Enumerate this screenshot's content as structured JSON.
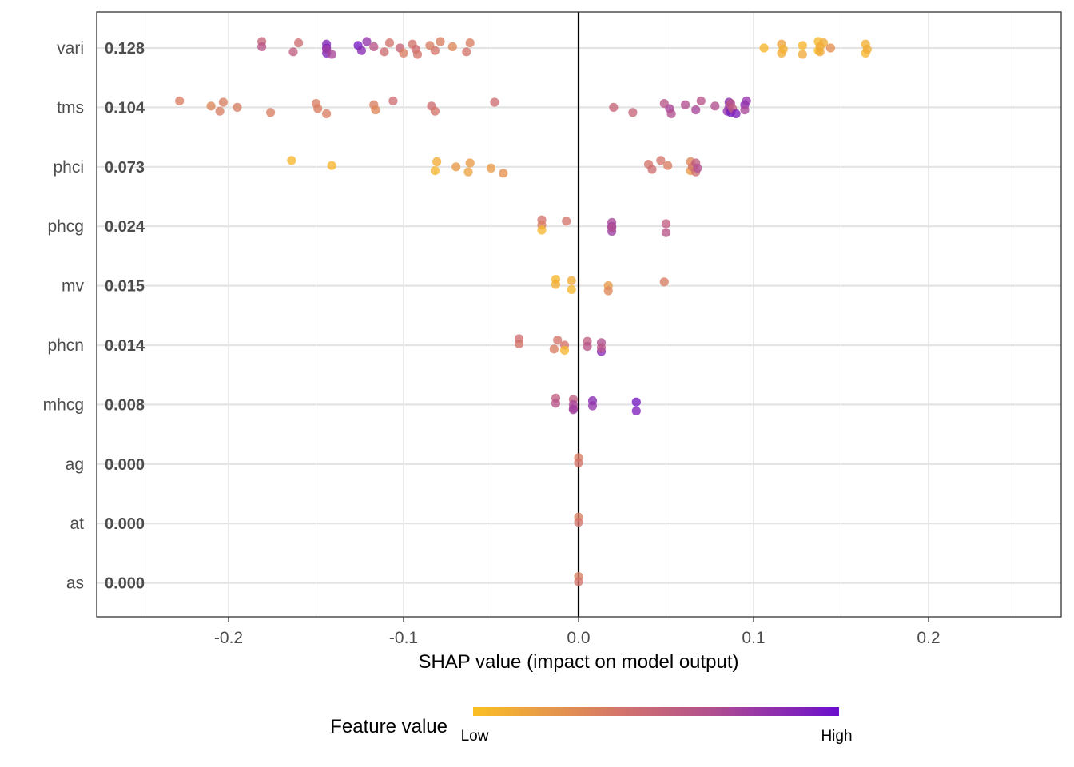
{
  "chart_data": {
    "type": "scatter",
    "title": "",
    "xlabel": "SHAP value (impact on model output)",
    "ylabel": "",
    "xlim": [
      -0.27,
      0.27
    ],
    "x_ticks": [
      -0.2,
      -0.1,
      0.0,
      0.1,
      0.2
    ],
    "x_tick_labels": [
      "-0.2",
      "-0.1",
      "0.0",
      "0.1",
      "0.2"
    ],
    "grid": true,
    "zero_line": true,
    "legend": {
      "title": "Feature value",
      "low_label": "Low",
      "high_label": "High",
      "placement": "bottom",
      "colors": [
        "#fbbf24",
        "#d4746a",
        "#b24f8f",
        "#6a0fcd"
      ]
    },
    "features": [
      {
        "name": "vari",
        "mean_abs": "0.128",
        "points": [
          [
            -0.181,
            0.5
          ],
          [
            -0.181,
            0.6
          ],
          [
            -0.163,
            0.55
          ],
          [
            -0.16,
            0.45
          ],
          [
            -0.144,
            0.92
          ],
          [
            -0.144,
            0.9
          ],
          [
            -0.144,
            0.88
          ],
          [
            -0.144,
            0.75
          ],
          [
            -0.141,
            0.7
          ],
          [
            -0.126,
            0.95
          ],
          [
            -0.124,
            0.85
          ],
          [
            -0.121,
            0.8
          ],
          [
            -0.117,
            0.6
          ],
          [
            -0.111,
            0.45
          ],
          [
            -0.108,
            0.4
          ],
          [
            -0.102,
            0.5
          ],
          [
            -0.1,
            0.35
          ],
          [
            -0.095,
            0.4
          ],
          [
            -0.093,
            0.45
          ],
          [
            -0.092,
            0.4
          ],
          [
            -0.085,
            0.35
          ],
          [
            -0.082,
            0.4
          ],
          [
            -0.079,
            0.35
          ],
          [
            -0.072,
            0.3
          ],
          [
            -0.064,
            0.4
          ],
          [
            -0.062,
            0.35
          ],
          [
            0.106,
            0.05
          ],
          [
            0.116,
            0.1
          ],
          [
            0.116,
            0.15
          ],
          [
            0.117,
            0.08
          ],
          [
            0.128,
            0.12
          ],
          [
            0.128,
            0.05
          ],
          [
            0.137,
            0.0
          ],
          [
            0.137,
            0.05
          ],
          [
            0.138,
            0.1
          ],
          [
            0.138,
            0.12
          ],
          [
            0.14,
            0.1
          ],
          [
            0.144,
            0.25
          ],
          [
            0.164,
            0.05
          ],
          [
            0.164,
            0.08
          ],
          [
            0.165,
            0.1
          ]
        ]
      },
      {
        "name": "tms",
        "mean_abs": "0.104",
        "points": [
          [
            -0.228,
            0.35
          ],
          [
            -0.21,
            0.3
          ],
          [
            -0.205,
            0.35
          ],
          [
            -0.203,
            0.35
          ],
          [
            -0.195,
            0.35
          ],
          [
            -0.176,
            0.35
          ],
          [
            -0.15,
            0.35
          ],
          [
            -0.149,
            0.35
          ],
          [
            -0.144,
            0.35
          ],
          [
            -0.117,
            0.35
          ],
          [
            -0.116,
            0.3
          ],
          [
            -0.106,
            0.45
          ],
          [
            -0.084,
            0.45
          ],
          [
            -0.082,
            0.4
          ],
          [
            -0.048,
            0.45
          ],
          [
            0.02,
            0.5
          ],
          [
            0.031,
            0.5
          ],
          [
            0.049,
            0.6
          ],
          [
            0.052,
            0.7
          ],
          [
            0.053,
            0.65
          ],
          [
            0.061,
            0.65
          ],
          [
            0.067,
            0.7
          ],
          [
            0.07,
            0.6
          ],
          [
            0.078,
            0.65
          ],
          [
            0.085,
            0.8
          ],
          [
            0.086,
            0.85
          ],
          [
            0.086,
            0.75
          ],
          [
            0.087,
            0.95
          ],
          [
            0.087,
            0.6
          ],
          [
            0.088,
            0.55
          ],
          [
            0.09,
            0.9
          ],
          [
            0.095,
            0.85
          ],
          [
            0.095,
            0.7
          ],
          [
            0.096,
            0.8
          ]
        ]
      },
      {
        "name": "phci",
        "mean_abs": "0.073",
        "points": [
          [
            -0.164,
            0.05
          ],
          [
            -0.141,
            0.05
          ],
          [
            -0.082,
            0.05
          ],
          [
            -0.081,
            0.1
          ],
          [
            -0.07,
            0.2
          ],
          [
            -0.063,
            0.15
          ],
          [
            -0.062,
            0.2
          ],
          [
            -0.05,
            0.2
          ],
          [
            -0.043,
            0.25
          ],
          [
            0.04,
            0.4
          ],
          [
            0.042,
            0.45
          ],
          [
            0.047,
            0.4
          ],
          [
            0.051,
            0.35
          ],
          [
            0.064,
            0.2
          ],
          [
            0.064,
            0.3
          ],
          [
            0.065,
            0.4
          ],
          [
            0.067,
            0.45
          ],
          [
            0.067,
            0.55
          ],
          [
            0.068,
            0.65
          ]
        ]
      },
      {
        "name": "phcg",
        "mean_abs": "0.024",
        "points": [
          [
            -0.021,
            0.4
          ],
          [
            -0.021,
            0.35
          ],
          [
            -0.021,
            0.05
          ],
          [
            -0.007,
            0.4
          ],
          [
            0.019,
            0.85
          ],
          [
            0.019,
            0.75
          ],
          [
            0.019,
            0.7
          ],
          [
            0.019,
            0.65
          ],
          [
            0.05,
            0.6
          ],
          [
            0.05,
            0.55
          ]
        ]
      },
      {
        "name": "mv",
        "mean_abs": "0.015",
        "points": [
          [
            -0.013,
            0.05
          ],
          [
            -0.013,
            0.08
          ],
          [
            -0.004,
            0.05
          ],
          [
            -0.004,
            0.1
          ],
          [
            0.017,
            0.2
          ],
          [
            0.017,
            0.3
          ],
          [
            0.049,
            0.35
          ]
        ]
      },
      {
        "name": "phcn",
        "mean_abs": "0.014",
        "points": [
          [
            -0.034,
            0.45
          ],
          [
            -0.034,
            0.4
          ],
          [
            -0.014,
            0.35
          ],
          [
            -0.012,
            0.4
          ],
          [
            -0.008,
            0.4
          ],
          [
            -0.008,
            0.05
          ],
          [
            0.005,
            0.55
          ],
          [
            0.005,
            0.6
          ],
          [
            0.013,
            0.85
          ],
          [
            0.013,
            0.65
          ],
          [
            0.013,
            0.6
          ]
        ]
      },
      {
        "name": "mhcg",
        "mean_abs": "0.008",
        "points": [
          [
            -0.013,
            0.55
          ],
          [
            -0.013,
            0.6
          ],
          [
            -0.003,
            0.6
          ],
          [
            -0.003,
            0.55
          ],
          [
            -0.003,
            0.7
          ],
          [
            -0.003,
            0.75
          ],
          [
            0.008,
            0.85
          ],
          [
            0.008,
            0.8
          ],
          [
            0.033,
            0.9
          ],
          [
            0.033,
            0.95
          ]
        ]
      },
      {
        "name": "ag",
        "mean_abs": "0.000",
        "points": [
          [
            0.0,
            0.35
          ],
          [
            0.0,
            0.4
          ]
        ]
      },
      {
        "name": "at",
        "mean_abs": "0.000",
        "points": [
          [
            0.0,
            0.35
          ],
          [
            0.0,
            0.4
          ]
        ]
      },
      {
        "name": "as",
        "mean_abs": "0.000",
        "points": [
          [
            0.0,
            0.35
          ],
          [
            0.0,
            0.4
          ]
        ]
      }
    ]
  }
}
